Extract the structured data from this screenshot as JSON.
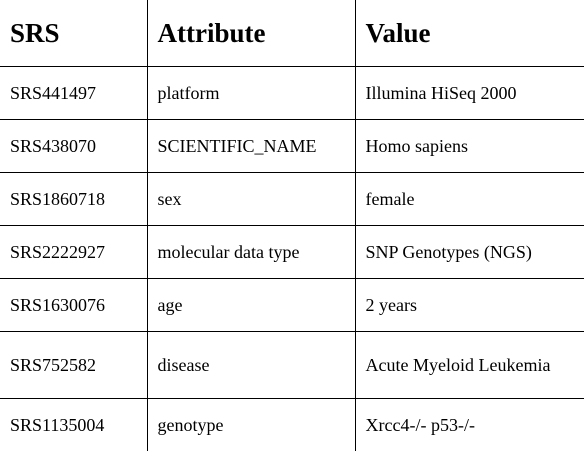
{
  "table": {
    "headers": [
      "SRS",
      "Attribute",
      "Value"
    ],
    "rows": [
      {
        "srs": "SRS441497",
        "attribute": "platform",
        "value": "Illumina HiSeq 2000"
      },
      {
        "srs": "SRS438070",
        "attribute": "SCIENTIFIC_NAME",
        "value": "Homo sapiens"
      },
      {
        "srs": "SRS1860718",
        "attribute": "sex",
        "value": "female"
      },
      {
        "srs": "SRS2222927",
        "attribute": "molecular data type",
        "value": "SNP Genotypes (NGS)"
      },
      {
        "srs": "SRS1630076",
        "attribute": "age",
        "value": "2 years"
      },
      {
        "srs": "SRS752582",
        "attribute": "disease",
        "value": "Acute Myeloid Leukemia"
      },
      {
        "srs": "SRS1135004",
        "attribute": "genotype",
        "value": "Xrcc4-/- p53-/-"
      }
    ]
  }
}
